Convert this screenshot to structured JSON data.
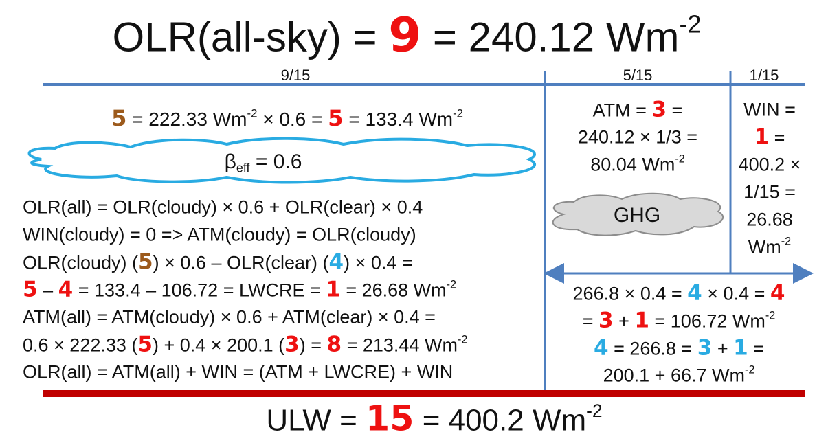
{
  "title": [
    "OLR(all-sky) = ",
    {
      "text": "9",
      "color": "#ee1111"
    },
    " = 240.12 Wm",
    {
      "sup": "-2"
    }
  ],
  "fractions": [
    "9/15",
    "5/15",
    "1/15"
  ],
  "left": {
    "cloudy_line": [
      {
        "text": "5",
        "color": "#9c5a1c"
      },
      " = 222.33 Wm",
      {
        "sup": "-2"
      },
      " × 0.6 = ",
      {
        "text": "5",
        "color": "#ee1111"
      },
      " = 133.4 Wm",
      {
        "sup": "-2"
      }
    ],
    "cloud_label": [
      "β",
      {
        "sub": "eff"
      },
      " = 0.6"
    ],
    "equations": [
      "OLR(all) = OLR(cloudy) × 0.6 + OLR(clear) × 0.4",
      "WIN(cloudy) = 0 => ATM(cloudy) = OLR(cloudy)",
      [
        "OLR(cloudy) (",
        {
          "text": "5",
          "color": "#9c5a1c"
        },
        ") × 0.6 – OLR(clear) (",
        {
          "text": "4",
          "color": "#29abe2"
        },
        ") × 0.4 ="
      ],
      [
        {
          "text": "5",
          "color": "#ee1111"
        },
        " – ",
        {
          "text": "4",
          "color": "#ee1111"
        },
        " = 133.4 – 106.72 = LWCRE = ",
        {
          "text": "1",
          "color": "#ee1111"
        },
        " = 26.68 Wm",
        {
          "sup": "-2"
        }
      ],
      "ATM(all) = ATM(cloudy) × 0.6 + ATM(clear) × 0.4 =",
      [
        "0.6 × 222.33 (",
        {
          "text": "5",
          "color": "#ee1111"
        },
        ") + 0.4 × 200.1 (",
        {
          "text": "3",
          "color": "#ee1111"
        },
        ") = ",
        {
          "text": "8",
          "color": "#ee1111"
        },
        " = 213.44 Wm",
        {
          "sup": "-2"
        }
      ],
      "OLR(all) = ATM(all) + WIN = (ATM + LWCRE) + WIN"
    ]
  },
  "atm": [
    [
      "ATM = ",
      {
        "text": "3",
        "color": "#ee1111"
      },
      " ="
    ],
    "240.12 × 1/3 =",
    [
      "80.04 Wm",
      {
        "sup": "-2"
      }
    ]
  ],
  "ghg": "GHG",
  "win": [
    "WIN =",
    [
      {
        "text": "1",
        "color": "#ee1111"
      },
      " ="
    ],
    "400.2 ×",
    "1/15 =",
    "26.68",
    [
      "Wm",
      {
        "sup": "-2"
      }
    ]
  ],
  "clear_sky": [
    [
      "266.8 × 0.4 = ",
      {
        "text": "4",
        "color": "#29abe2"
      },
      " × 0.4 = ",
      {
        "text": "4",
        "color": "#ee1111"
      }
    ],
    [
      "= ",
      {
        "text": "3",
        "color": "#ee1111"
      },
      " + ",
      {
        "text": "1",
        "color": "#ee1111"
      },
      " = 106.72 Wm",
      {
        "sup": "-2"
      }
    ],
    [
      {
        "text": "4",
        "color": "#29abe2"
      },
      " = 266.8 = ",
      {
        "text": "3",
        "color": "#29abe2"
      },
      " + ",
      {
        "text": "1",
        "color": "#29abe2"
      },
      " ="
    ],
    [
      "200.1 + 66.7 Wm",
      {
        "sup": "-2"
      }
    ]
  ],
  "footer": [
    "ULW = ",
    {
      "text": "15",
      "color": "#ee1111"
    },
    " = 400.2 Wm",
    {
      "sup": "-2"
    }
  ]
}
